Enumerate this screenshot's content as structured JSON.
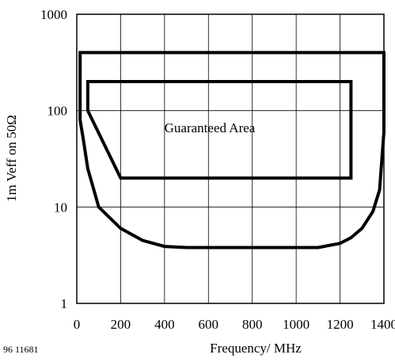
{
  "chart_data": {
    "type": "line",
    "xlabel": "Frequency/ MHz",
    "ylabel": "1m Veff on 50Ω",
    "annotation": "Guaranteed Area",
    "figure_id": "96 11681",
    "x_scale": "linear",
    "y_scale": "log",
    "xlim": [
      0,
      1400
    ],
    "ylim": [
      1,
      1000
    ],
    "x_ticks": [
      "0",
      "200",
      "400",
      "600",
      "800",
      "1000",
      "1200",
      "1400"
    ],
    "y_ticks": [
      "1",
      "10",
      "100",
      "1000"
    ],
    "grid": true,
    "series": [
      {
        "x": [
          15,
          15,
          1400,
          1400,
          1380,
          1350,
          1300,
          1250,
          1200,
          1100,
          1000,
          900,
          800,
          700,
          600,
          500,
          400,
          300,
          200,
          100,
          50,
          30,
          15
        ],
        "y": [
          80,
          400,
          400,
          60,
          15,
          9,
          6,
          4.8,
          4.2,
          3.8,
          3.8,
          3.8,
          3.8,
          3.8,
          3.8,
          3.8,
          3.9,
          4.5,
          6,
          10,
          25,
          50,
          80
        ]
      },
      {
        "x": [
          50,
          50,
          1250,
          1250,
          200,
          50
        ],
        "y": [
          100,
          200,
          200,
          20,
          20,
          100
        ]
      }
    ]
  }
}
